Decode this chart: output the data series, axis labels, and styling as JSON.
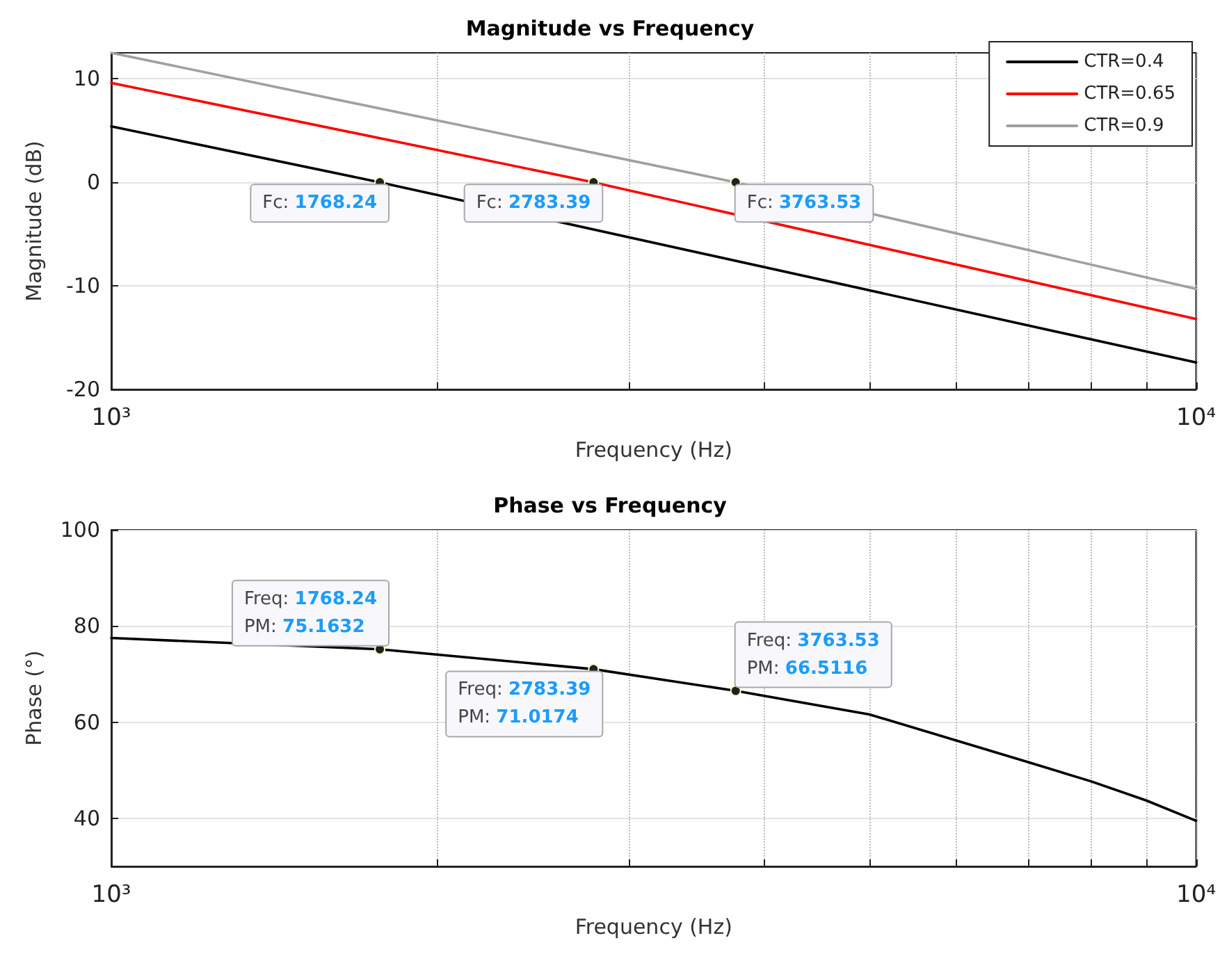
{
  "chart_data": [
    {
      "type": "line",
      "title": "Magnitude vs Frequency",
      "xlabel": "Frequency (Hz)",
      "ylabel": "Magnitude (dB)",
      "log": "x",
      "xlim": [
        1000,
        10000
      ],
      "xticks": [
        {
          "value": 1000,
          "label": "10³"
        },
        {
          "value": 2000,
          "label": null
        },
        {
          "value": 3000,
          "label": null
        },
        {
          "value": 4000,
          "label": null
        },
        {
          "value": 5000,
          "label": null
        },
        {
          "value": 6000,
          "label": null
        },
        {
          "value": 7000,
          "label": null
        },
        {
          "value": 8000,
          "label": null
        },
        {
          "value": 9000,
          "label": null
        },
        {
          "value": 10000,
          "label": "10⁴"
        }
      ],
      "ylim": [
        -20,
        12.5
      ],
      "yticks": [
        -20,
        -10,
        0,
        10
      ],
      "grid": true,
      "legend": "top right",
      "marker": "none",
      "line_style": "solid",
      "series": [
        {
          "name": "CTR=0.4",
          "color": "#000000",
          "x": [
            1000,
            1768.24,
            10000
          ],
          "values": [
            5.4,
            0,
            -17.4
          ]
        },
        {
          "name": "CTR=0.65",
          "color": "#ff0000",
          "x": [
            1000,
            2783.39,
            10000
          ],
          "values": [
            9.6,
            0,
            -13.2
          ]
        },
        {
          "name": "CTR=0.9",
          "color": "#a0a0a0",
          "x": [
            1000,
            3763.53,
            10000
          ],
          "values": [
            12.5,
            0,
            -10.3
          ]
        }
      ],
      "annotations": [
        {
          "text": "Fc: 1768.24",
          "x": 1768.24,
          "y": 0
        },
        {
          "text": "Fc: 2783.39",
          "x": 2783.39,
          "y": 0
        },
        {
          "text": "Fc: 3763.53",
          "x": 3763.53,
          "y": 0
        }
      ]
    },
    {
      "type": "line",
      "title": "Phase vs Frequency",
      "xlabel": "Frequency (Hz)",
      "ylabel": "Phase (°)",
      "log": "x",
      "xlim": [
        1000,
        10000
      ],
      "xticks": [
        {
          "value": 1000,
          "label": "10³"
        },
        {
          "value": 2000,
          "label": null
        },
        {
          "value": 3000,
          "label": null
        },
        {
          "value": 4000,
          "label": null
        },
        {
          "value": 5000,
          "label": null
        },
        {
          "value": 6000,
          "label": null
        },
        {
          "value": 7000,
          "label": null
        },
        {
          "value": 8000,
          "label": null
        },
        {
          "value": 9000,
          "label": null
        },
        {
          "value": 10000,
          "label": "10⁴"
        }
      ],
      "ylim": [
        30,
        100
      ],
      "yticks": [
        40,
        60,
        80,
        100
      ],
      "grid": true,
      "marker": "none",
      "line_style": "solid",
      "series": [
        {
          "color": "#000000",
          "x": [
            1000,
            1768.24,
            2783.39,
            3763.53,
            5000,
            7000,
            8000,
            9000,
            10000
          ],
          "values": [
            77.5,
            75.1632,
            71.0174,
            66.5116,
            61.6,
            51.7,
            47.7,
            43.7,
            39.5
          ]
        }
      ],
      "annotations": [
        {
          "text": "Freq: 1768.24",
          "x": 1768.24,
          "y": 75.1632
        },
        {
          "text": "PM: 75.1632",
          "x": 1768.24,
          "y": 75.1632
        },
        {
          "text": "Freq: 2783.39",
          "x": 2783.39,
          "y": 71.0174
        },
        {
          "text": "PM: 71.0174",
          "x": 2783.39,
          "y": 71.0174
        },
        {
          "text": "Freq: 3763.53",
          "x": 3763.53,
          "y": 66.5116
        },
        {
          "text": "PM: 66.5116",
          "x": 3763.53,
          "y": 66.5116
        }
      ]
    }
  ]
}
